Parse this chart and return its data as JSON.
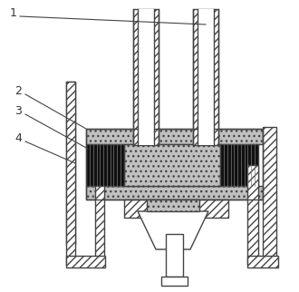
{
  "bg_color": "#ffffff",
  "line_color": "#444444",
  "figsize": [
    3.3,
    3.22
  ],
  "dpi": 100,
  "sand_fc": "#c0c0c0",
  "hatch_fc": "#ffffff",
  "black_fc": "#111111"
}
